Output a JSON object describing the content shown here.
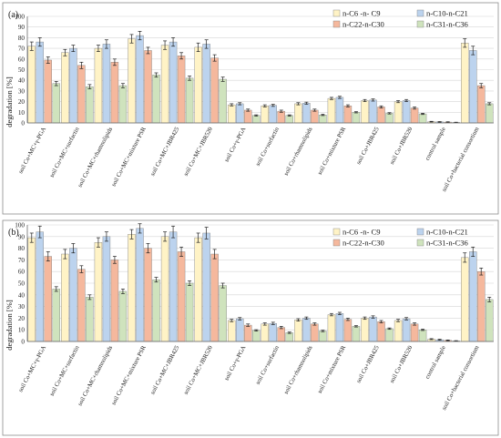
{
  "colors": {
    "c6_c9": "#fff3c6",
    "c10_c21": "#bcd3ee",
    "c22_c30": "#f5b89d",
    "c31_c36": "#cfe3bd"
  },
  "chart_data": [
    {
      "type": "bar",
      "panel_label": "(a)",
      "ylabel": "degradation [%]",
      "ylim": [
        0,
        100
      ],
      "ytick_step": 10,
      "grid": true,
      "legend_position": "top-right",
      "categories": [
        "soil Co+MC+γ-PGA",
        "soil Co+MC+surfactin",
        "soil Co+MC+rhamnolipids",
        "soil Co+MC+mixture PSR",
        "soil Co+MC+JBR425",
        "soil Co+MC+JBR520",
        "soil Co+γ-PGA",
        "soil Co+surfactin",
        "soil Co+rhamnolipids",
        "soil Co+mixture PSR",
        "soil Co+JBR425",
        "soil Co+JBR520",
        "control sample",
        "soil Co+bacterial consortium"
      ],
      "series": [
        {
          "name": "n-C6 -n- C9",
          "color_key": "c6_c9",
          "values": [
            72,
            66,
            70,
            79,
            73,
            71,
            17,
            16,
            18,
            23,
            21,
            20,
            1.2,
            75
          ],
          "errors": [
            4,
            3,
            3,
            4,
            4,
            4,
            1,
            1,
            1,
            1,
            1,
            1,
            0.3,
            4
          ]
        },
        {
          "name": "n-C10-n-C21",
          "color_key": "c10_c21",
          "values": [
            76,
            70,
            74,
            82,
            76,
            74,
            18,
            16.5,
            18.5,
            24,
            21.5,
            21,
            1,
            68
          ],
          "errors": [
            4,
            3,
            4,
            4,
            4,
            4,
            1,
            1,
            1,
            1,
            1,
            1,
            0.3,
            4
          ]
        },
        {
          "name": "n-C22-n-C30",
          "color_key": "c22_c30",
          "values": [
            59,
            54,
            57,
            68,
            63,
            61,
            12,
            11,
            12,
            16,
            15,
            14,
            0.8,
            35
          ],
          "errors": [
            3,
            3,
            3,
            3,
            3,
            3,
            1,
            1,
            1,
            1,
            1,
            1,
            0.3,
            2
          ]
        },
        {
          "name": "n-C31-n-C36",
          "color_key": "c31_c36",
          "values": [
            37,
            34,
            35,
            45,
            42,
            41,
            7,
            7,
            7.5,
            10,
            9,
            8.5,
            0.5,
            18
          ],
          "errors": [
            2,
            2,
            2,
            2,
            2,
            2,
            0.6,
            0.6,
            0.6,
            0.6,
            0.6,
            0.6,
            0.2,
            1
          ]
        }
      ]
    },
    {
      "type": "bar",
      "panel_label": "(b)",
      "ylabel": "degradation [%]",
      "ylim": [
        0,
        100
      ],
      "ytick_step": 10,
      "grid": true,
      "legend_position": "top-right",
      "categories": [
        "soil Co+MC+γ-PGA",
        "soil Co+MC+surfactin",
        "soil Co+MC+rhamnolipids",
        "soil Co+MC+mixture PSR",
        "soil Co+MC+JBR425",
        "soil Co+MC+JBR520",
        "soil Co+γ-PGA",
        "soil Co+surfactin",
        "soil Co+rhamnolipids",
        "soil Co+mixture PSR",
        "soil Co+JBR425",
        "soil Co+JBR520",
        "control sample",
        "soil Co+bacterial consortium"
      ],
      "series": [
        {
          "name": "n-C6 -n- C9",
          "color_key": "c6_c9",
          "values": [
            89,
            75,
            85,
            92,
            90,
            89,
            18,
            15,
            18.5,
            23,
            20,
            18,
            2,
            72
          ],
          "errors": [
            4,
            4,
            4,
            4,
            4,
            4,
            1,
            1,
            1,
            1,
            1,
            1,
            0.4,
            4
          ]
        },
        {
          "name": "n-C10-n-C21",
          "color_key": "c10_c21",
          "values": [
            94,
            80,
            90,
            97,
            94,
            93,
            19.5,
            15.5,
            20,
            24,
            21,
            19.5,
            1.5,
            77
          ],
          "errors": [
            5,
            4,
            4,
            4,
            5,
            5,
            1,
            1,
            1,
            1,
            1,
            1,
            0.4,
            4
          ]
        },
        {
          "name": "n-C22-n-C30",
          "color_key": "c22_c30",
          "values": [
            73,
            62,
            70,
            80,
            77,
            75,
            14,
            12,
            15,
            19,
            17,
            15,
            1,
            60
          ],
          "errors": [
            4,
            3,
            3,
            4,
            4,
            4,
            1,
            1,
            1,
            1,
            1,
            1,
            0.3,
            3
          ]
        },
        {
          "name": "n-C31-n-C36",
          "color_key": "c31_c36",
          "values": [
            45,
            38,
            43,
            53,
            50,
            48,
            9.5,
            7.5,
            9,
            13,
            11,
            10,
            0.5,
            36
          ],
          "errors": [
            2,
            2,
            2,
            2,
            2,
            2,
            0.6,
            0.6,
            0.6,
            0.6,
            0.6,
            0.6,
            0.2,
            2
          ]
        }
      ]
    }
  ]
}
